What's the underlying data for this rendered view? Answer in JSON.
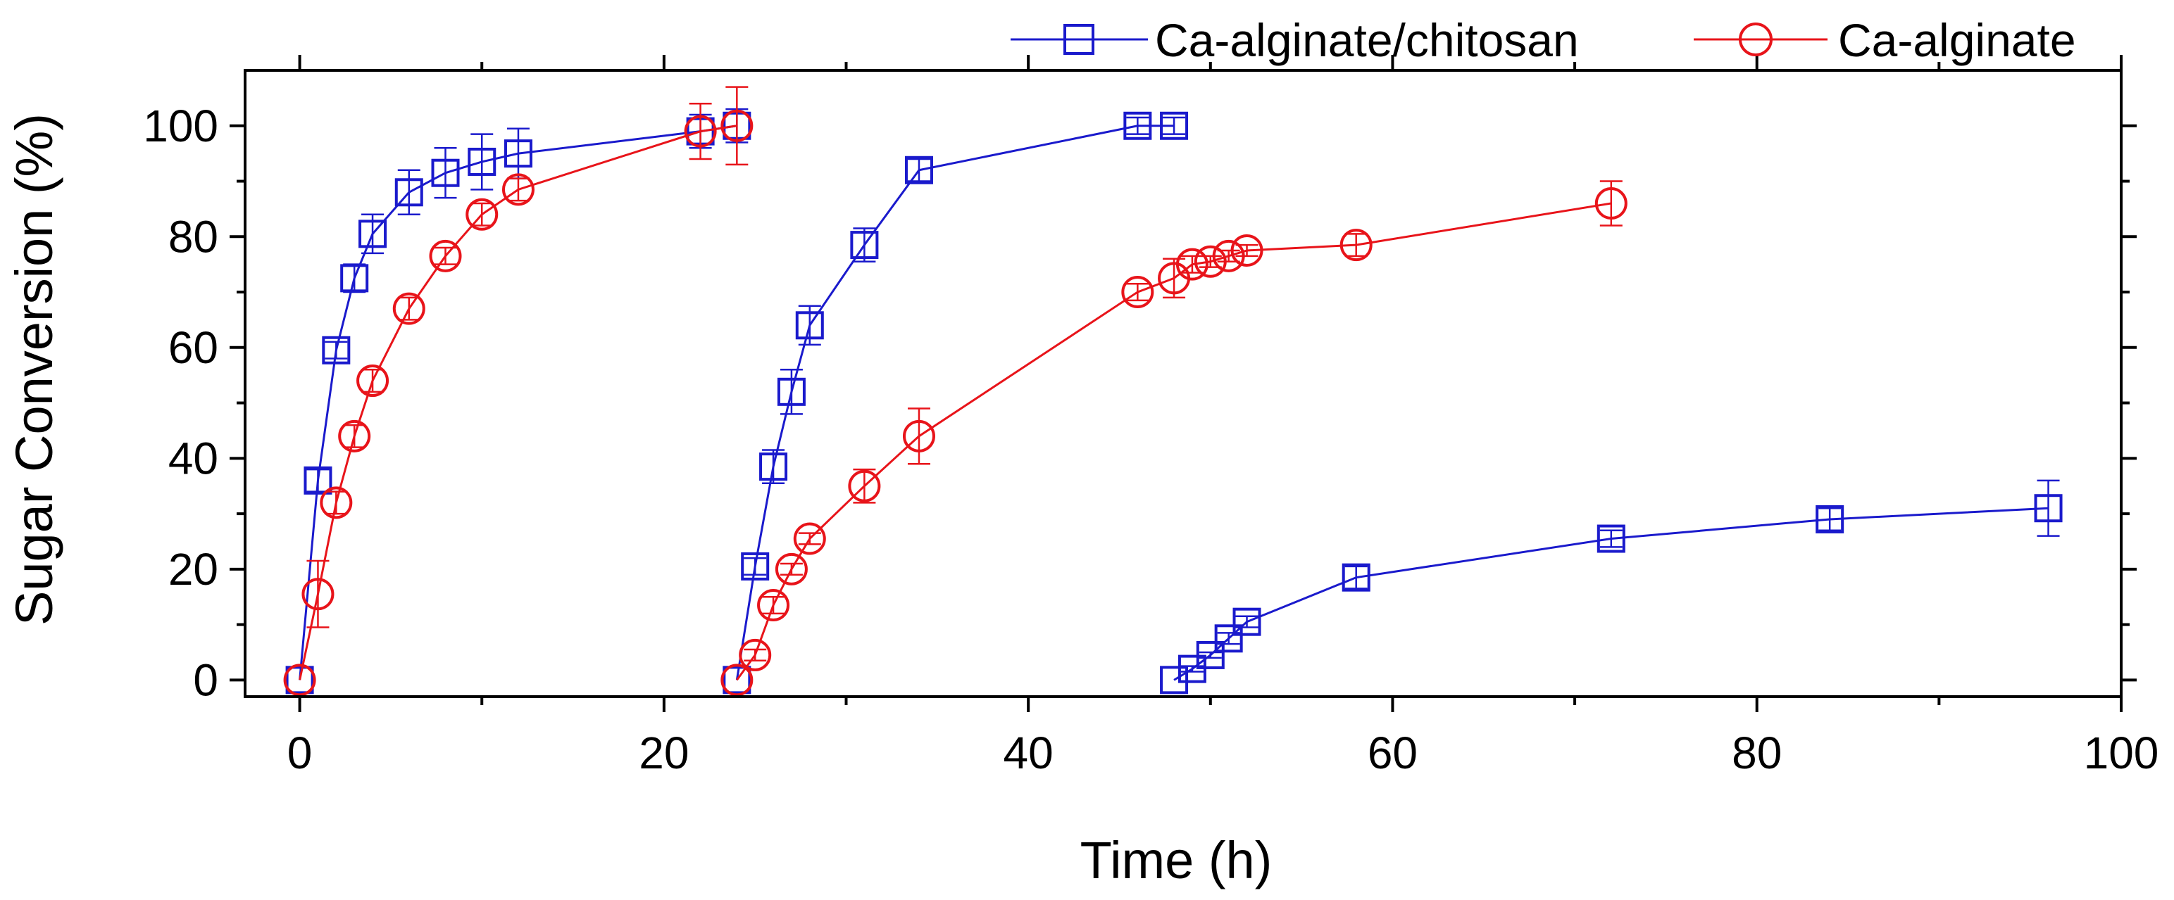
{
  "chart_data": {
    "type": "line",
    "title": "",
    "xlabel": "Time (h)",
    "ylabel": "Sugar Conversion (%)",
    "xlim": [
      -3,
      100
    ],
    "ylim": [
      -3,
      110
    ],
    "xticks": [
      0,
      20,
      40,
      60,
      80,
      100
    ],
    "yticks": [
      0,
      20,
      40,
      60,
      80,
      100
    ],
    "xtick_labels": [
      "0",
      "20",
      "40",
      "60",
      "80",
      "100"
    ],
    "ytick_labels": [
      "0",
      "20",
      "40",
      "60",
      "80",
      "100"
    ],
    "grid": false,
    "legend_position": "top-right, above plot",
    "series": [
      {
        "name": "Ca-alginate/chitosan",
        "color": "#1a1acc",
        "marker": "square",
        "segments": [
          [
            {
              "x": 0,
              "y": 0,
              "err": 0
            },
            {
              "x": 1,
              "y": 36,
              "err": 2
            },
            {
              "x": 2,
              "y": 59.5,
              "err": 1.5
            },
            {
              "x": 3,
              "y": 72.5,
              "err": 2.5
            },
            {
              "x": 4,
              "y": 80.5,
              "err": 3.5
            },
            {
              "x": 6,
              "y": 88,
              "err": 4
            },
            {
              "x": 8,
              "y": 91.5,
              "err": 4.5
            },
            {
              "x": 10,
              "y": 93.5,
              "err": 5
            },
            {
              "x": 12,
              "y": 95,
              "err": 4.5
            },
            {
              "x": 22,
              "y": 99,
              "err": 3
            },
            {
              "x": 24,
              "y": 100,
              "err": 3
            }
          ],
          [
            {
              "x": 24,
              "y": 0,
              "err": 0
            },
            {
              "x": 25,
              "y": 20.5,
              "err": 1.5
            },
            {
              "x": 26,
              "y": 38.5,
              "err": 3
            },
            {
              "x": 27,
              "y": 52,
              "err": 4
            },
            {
              "x": 28,
              "y": 64,
              "err": 3.5
            },
            {
              "x": 31,
              "y": 78.5,
              "err": 3
            },
            {
              "x": 34,
              "y": 92,
              "err": 2
            },
            {
              "x": 46,
              "y": 100,
              "err": 1.5
            },
            {
              "x": 48,
              "y": 100,
              "err": 1.5
            }
          ],
          [
            {
              "x": 48,
              "y": 0,
              "err": 0
            },
            {
              "x": 49,
              "y": 2,
              "err": 0.5
            },
            {
              "x": 50,
              "y": 4.5,
              "err": 0.5
            },
            {
              "x": 51,
              "y": 7.5,
              "err": 1
            },
            {
              "x": 52,
              "y": 10.5,
              "err": 1
            },
            {
              "x": 58,
              "y": 18.5,
              "err": 2
            },
            {
              "x": 72,
              "y": 25.5,
              "err": 1.5
            },
            {
              "x": 84,
              "y": 29,
              "err": 2
            },
            {
              "x": 96,
              "y": 31,
              "err": 5
            }
          ]
        ]
      },
      {
        "name": "Ca-alginate",
        "color": "#e8141a",
        "marker": "circle",
        "segments": [
          [
            {
              "x": 0,
              "y": 0,
              "err": 0
            },
            {
              "x": 1,
              "y": 15.5,
              "err": 6
            },
            {
              "x": 2,
              "y": 32,
              "err": 2
            },
            {
              "x": 3,
              "y": 44,
              "err": 2
            },
            {
              "x": 4,
              "y": 54,
              "err": 2
            },
            {
              "x": 6,
              "y": 67,
              "err": 2
            },
            {
              "x": 8,
              "y": 76.5,
              "err": 1.5
            },
            {
              "x": 10,
              "y": 84,
              "err": 2
            },
            {
              "x": 12,
              "y": 88.5,
              "err": 2
            },
            {
              "x": 22,
              "y": 99,
              "err": 5
            },
            {
              "x": 24,
              "y": 100,
              "err": 7
            }
          ],
          [
            {
              "x": 24,
              "y": 0,
              "err": 0
            },
            {
              "x": 25,
              "y": 4.5,
              "err": 1
            },
            {
              "x": 26,
              "y": 13.5,
              "err": 1.5
            },
            {
              "x": 27,
              "y": 20,
              "err": 1
            },
            {
              "x": 28,
              "y": 25.5,
              "err": 1
            },
            {
              "x": 31,
              "y": 35,
              "err": 3
            },
            {
              "x": 34,
              "y": 44,
              "err": 5
            },
            {
              "x": 46,
              "y": 70,
              "err": 1.5
            },
            {
              "x": 48,
              "y": 72.5,
              "err": 3.5
            },
            {
              "x": 49,
              "y": 75,
              "err": 1.5
            },
            {
              "x": 50,
              "y": 75.5,
              "err": 1
            },
            {
              "x": 51,
              "y": 76.5,
              "err": 1
            },
            {
              "x": 52,
              "y": 77.5,
              "err": 1
            },
            {
              "x": 58,
              "y": 78.5,
              "err": 2
            },
            {
              "x": 72,
              "y": 86,
              "err": 4
            }
          ]
        ]
      }
    ]
  }
}
